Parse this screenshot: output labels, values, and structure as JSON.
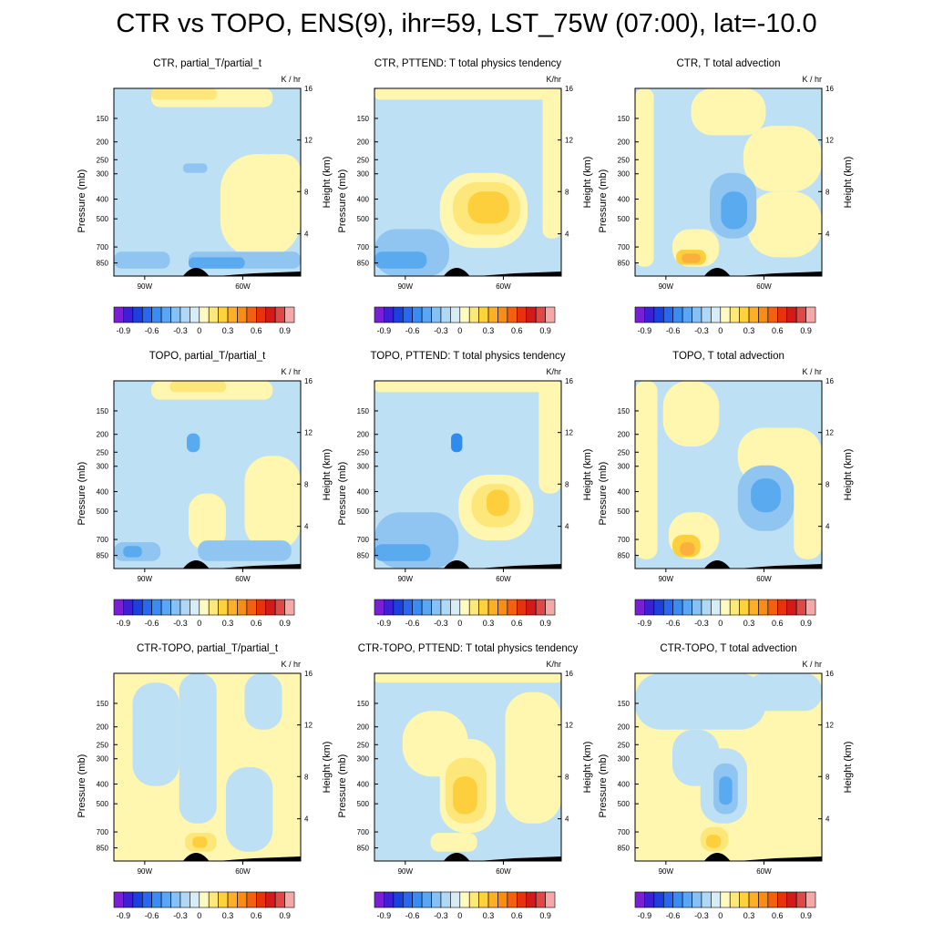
{
  "title": "CTR vs TOPO, ENS(9), ihr=59, LST_75W (07:00), lat=-10.0",
  "colorbar": {
    "colors": [
      "#7a1fd6",
      "#3d1fd6",
      "#1e3fe0",
      "#2a66f0",
      "#3b8cf2",
      "#5aa6f4",
      "#86c0f4",
      "#b0d8f4",
      "#d8ecf6",
      "#fffac0",
      "#fde87a",
      "#fdd23c",
      "#fdb021",
      "#f98c15",
      "#f4600f",
      "#e8320e",
      "#d21a1a",
      "#e04848",
      "#f4a8a8"
    ],
    "labels": [
      "-0.9",
      "-0.6",
      "-0.3",
      "0",
      "0.3",
      "0.6",
      "0.9"
    ]
  },
  "axes": {
    "pressure_label": "Pressure (mb)",
    "height_label": "Height (km)",
    "pressure_ticks": [
      "150",
      "200",
      "250",
      "300",
      "400",
      "500",
      "700",
      "850"
    ],
    "height_ticks": [
      "16",
      "12",
      "8",
      "4"
    ],
    "x_ticks": [
      "90W",
      "60W"
    ]
  },
  "chart_data": [
    {
      "type": "heatmap",
      "title": "CTR, partial_T/partial_t",
      "units": "K / hr",
      "pattern": "ctr_tend"
    },
    {
      "type": "heatmap",
      "title": "CTR, PTTEND: T total physics tendency",
      "units": "K/hr",
      "pattern": "ctr_phys"
    },
    {
      "type": "heatmap",
      "title": "CTR, T total advection",
      "units": "K / hr",
      "pattern": "ctr_adv"
    },
    {
      "type": "heatmap",
      "title": "TOPO, partial_T/partial_t",
      "units": "K / hr",
      "pattern": "topo_tend"
    },
    {
      "type": "heatmap",
      "title": "TOPO, PTTEND: T total physics tendency",
      "units": "K/hr",
      "pattern": "topo_phys"
    },
    {
      "type": "heatmap",
      "title": "TOPO, T total advection",
      "units": "K / hr",
      "pattern": "topo_adv"
    },
    {
      "type": "heatmap",
      "title": "CTR-TOPO, partial_T/partial_t",
      "units": "K / hr",
      "pattern": "diff_tend"
    },
    {
      "type": "heatmap",
      "title": "CTR-TOPO, PTTEND: T total physics tendency",
      "units": "K/hr",
      "pattern": "diff_phys"
    },
    {
      "type": "heatmap",
      "title": "CTR-TOPO, T total advection",
      "units": "K / hr",
      "pattern": "diff_adv"
    }
  ]
}
